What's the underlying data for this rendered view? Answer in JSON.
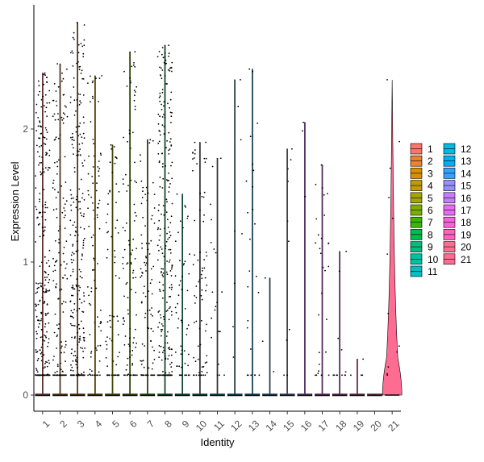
{
  "chart_data": {
    "type": "violin",
    "title": "",
    "xlabel": "Identity",
    "ylabel": "Expression Level",
    "ylim": [
      0,
      2.9
    ],
    "yticks": [
      0,
      1,
      2
    ],
    "grid": false,
    "legend_position": "right",
    "categories": [
      "1",
      "2",
      "3",
      "4",
      "5",
      "6",
      "7",
      "8",
      "9",
      "10",
      "11",
      "12",
      "13",
      "14",
      "15",
      "16",
      "17",
      "18",
      "19",
      "20",
      "21"
    ],
    "colors": [
      "#F8766D",
      "#EA8331",
      "#D89000",
      "#C09B00",
      "#A3A500",
      "#7CAE00",
      "#39B600",
      "#00BB4E",
      "#00BF7D",
      "#00C1A3",
      "#00BFC4",
      "#00BAE0",
      "#00B0F6",
      "#35A2FF",
      "#9590FF",
      "#C77CFF",
      "#E76BF3",
      "#FA62DB",
      "#FF62BC",
      "#FF6C91",
      "#FF6C91"
    ],
    "max_values": [
      2.42,
      2.49,
      2.8,
      2.4,
      1.88,
      2.58,
      1.92,
      2.63,
      1.51,
      1.9,
      1.78,
      2.37,
      2.45,
      0.88,
      1.85,
      2.05,
      1.73,
      1.08,
      0.27,
      0.0,
      2.37
    ],
    "nonzero_point_counts": [
      260,
      150,
      260,
      90,
      75,
      110,
      95,
      260,
      55,
      75,
      20,
      8,
      25,
      3,
      10,
      3,
      30,
      12,
      4,
      0,
      12
    ]
  }
}
